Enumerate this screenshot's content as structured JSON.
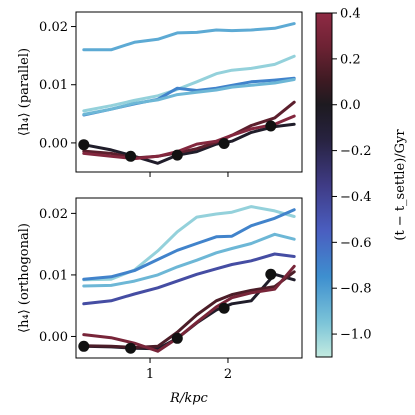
{
  "chart_data": [
    {
      "type": "line",
      "panel": "top",
      "ylabel": "⟨h₄⟩ (parallel)",
      "xlabel": "",
      "xlim": [
        0.05,
        2.95
      ],
      "ylim": [
        -0.005,
        0.0225
      ],
      "yticks": [
        0.0,
        0.01,
        0.02
      ],
      "ytick_labels": [
        "0.00",
        "0.01",
        "0.02"
      ],
      "xticks": [
        1,
        2
      ],
      "xtick_labels": [
        "",
        ""
      ],
      "series": [
        {
          "age": -0.85,
          "x": [
            0.15,
            0.5,
            0.8,
            1.1,
            1.35,
            1.6,
            1.85,
            2.05,
            2.3,
            2.6,
            2.85
          ],
          "y": [
            0.016,
            0.016,
            0.0173,
            0.0178,
            0.0189,
            0.019,
            0.0194,
            0.0193,
            0.0194,
            0.0197,
            0.0205
          ]
        },
        {
          "age": -1.0,
          "x": [
            0.15,
            0.5,
            0.8,
            1.1,
            1.35,
            1.6,
            1.85,
            2.05,
            2.3,
            2.6,
            2.85
          ],
          "y": [
            0.0055,
            0.0064,
            0.0073,
            0.0081,
            0.0092,
            0.0105,
            0.0119,
            0.0125,
            0.0128,
            0.0135,
            0.0149
          ]
        },
        {
          "age": -0.7,
          "x": [
            0.15,
            0.5,
            0.8,
            1.1,
            1.35,
            1.6,
            1.85,
            2.05,
            2.3,
            2.6,
            2.85
          ],
          "y": [
            0.0048,
            0.0058,
            0.0067,
            0.0075,
            0.0094,
            0.009,
            0.0094,
            0.0099,
            0.0105,
            0.0108,
            0.0111
          ]
        },
        {
          "age": -0.9,
          "x": [
            0.15,
            0.5,
            0.8,
            1.1,
            1.35,
            1.6,
            1.85,
            2.05,
            2.3,
            2.6,
            2.85
          ],
          "y": [
            0.0049,
            0.0058,
            0.0068,
            0.0074,
            0.0083,
            0.0087,
            0.0091,
            0.0096,
            0.0099,
            0.0103,
            0.0109
          ]
        },
        {
          "age": -0.05,
          "x": [
            0.15,
            0.5,
            0.8,
            1.1,
            1.35,
            1.6,
            1.85,
            2.05,
            2.3,
            2.6,
            2.85
          ],
          "y": [
            -0.0003,
            -0.0012,
            -0.0023,
            -0.0035,
            -0.0021,
            -0.0015,
            -0.0002,
            0.0003,
            0.0018,
            0.0028,
            0.0032
          ]
        },
        {
          "age": 0.2,
          "x": [
            0.15,
            0.5,
            0.8,
            1.1,
            1.35,
            1.6,
            1.85,
            2.05,
            2.3,
            2.6,
            2.85
          ],
          "y": [
            -0.0014,
            -0.0018,
            -0.0026,
            -0.0023,
            -0.0017,
            -0.001,
            0.0001,
            0.0013,
            0.003,
            0.0043,
            0.007
          ]
        },
        {
          "age": 0.35,
          "x": [
            0.15,
            0.5,
            0.8,
            1.1,
            1.35,
            1.6,
            1.85,
            2.05,
            2.3,
            2.6,
            2.85
          ],
          "y": [
            -0.0018,
            -0.0023,
            -0.0027,
            -0.0023,
            -0.0015,
            -0.0002,
            0.0003,
            0.0013,
            0.0024,
            0.0032,
            0.0046
          ]
        }
      ],
      "markers": {
        "x": [
          0.15,
          0.75,
          1.35,
          1.95,
          2.55
        ],
        "y": [
          -0.0003,
          -0.0023,
          -0.0021,
          -0.0001,
          0.0029
        ]
      }
    },
    {
      "type": "line",
      "panel": "bottom",
      "ylabel": "⟨h₄⟩ (orthogonal)",
      "xlabel": "R/kpc",
      "xlim": [
        0.05,
        2.95
      ],
      "ylim": [
        -0.0035,
        0.0225
      ],
      "yticks": [
        0.0,
        0.01,
        0.02
      ],
      "ytick_labels": [
        "0.00",
        "0.01",
        "0.02"
      ],
      "xticks": [
        1,
        2
      ],
      "xtick_labels": [
        "1",
        "2"
      ],
      "series": [
        {
          "age": -1.0,
          "x": [
            0.15,
            0.5,
            0.8,
            1.1,
            1.35,
            1.6,
            1.85,
            2.05,
            2.3,
            2.6,
            2.85
          ],
          "y": [
            0.0092,
            0.0093,
            0.0108,
            0.0139,
            0.017,
            0.0194,
            0.0199,
            0.0202,
            0.0211,
            0.0204,
            0.0195
          ]
        },
        {
          "age": -0.7,
          "x": [
            0.15,
            0.5,
            0.8,
            1.1,
            1.35,
            1.6,
            1.85,
            2.05,
            2.3,
            2.6,
            2.85
          ],
          "y": [
            0.0093,
            0.0097,
            0.0107,
            0.0125,
            0.014,
            0.0151,
            0.0162,
            0.0163,
            0.018,
            0.0192,
            0.0206
          ]
        },
        {
          "age": -0.9,
          "x": [
            0.15,
            0.5,
            0.8,
            1.1,
            1.35,
            1.6,
            1.85,
            2.05,
            2.3,
            2.6,
            2.85
          ],
          "y": [
            0.0082,
            0.0083,
            0.009,
            0.01,
            0.0113,
            0.0124,
            0.0136,
            0.0143,
            0.0151,
            0.0166,
            0.0158
          ]
        },
        {
          "age": -0.45,
          "x": [
            0.15,
            0.5,
            0.8,
            1.1,
            1.35,
            1.6,
            1.85,
            2.05,
            2.3,
            2.6,
            2.85
          ],
          "y": [
            0.0053,
            0.0058,
            0.0069,
            0.0079,
            0.009,
            0.0101,
            0.011,
            0.0117,
            0.0123,
            0.0134,
            0.013
          ]
        },
        {
          "age": -0.05,
          "x": [
            0.15,
            0.5,
            0.8,
            1.1,
            1.35,
            1.6,
            1.85,
            2.05,
            2.3,
            2.6,
            2.85
          ],
          "y": [
            -0.0016,
            -0.0017,
            -0.0019,
            -0.002,
            -0.0003,
            0.0022,
            0.0043,
            0.0053,
            0.0058,
            0.0101,
            0.0092
          ]
        },
        {
          "age": 0.15,
          "x": [
            0.15,
            0.5,
            0.8,
            1.1,
            1.35,
            1.6,
            1.85,
            2.05,
            2.3,
            2.6,
            2.85
          ],
          "y": [
            -0.0015,
            -0.0016,
            -0.0018,
            -0.0016,
            0.0007,
            0.0035,
            0.0058,
            0.0068,
            0.0075,
            0.0081,
            0.0105
          ]
        },
        {
          "age": 0.3,
          "x": [
            0.15,
            0.5,
            0.8,
            1.1,
            1.35,
            1.6,
            1.85,
            2.05,
            2.3,
            2.6,
            2.85
          ],
          "y": [
            0.0003,
            -0.0002,
            -0.0011,
            -0.0024,
            -0.0003,
            0.0023,
            0.0048,
            0.0063,
            0.0071,
            0.0077,
            0.0114
          ]
        }
      ],
      "markers": {
        "x": [
          0.15,
          0.75,
          1.35,
          1.95,
          2.55
        ],
        "y": [
          -0.0016,
          -0.0019,
          -0.0003,
          0.0046,
          0.0101
        ]
      }
    },
    {
      "type": "colorbar",
      "label": "(t − t_settle)/Gyr",
      "range": [
        -1.1,
        0.4
      ],
      "ticks": [
        0.4,
        0.2,
        0.0,
        -0.2,
        -0.4,
        -0.6,
        -0.8,
        -1.0
      ],
      "tick_labels": [
        "0.4",
        "0.2",
        "0.0",
        "−0.2",
        "−0.4",
        "−0.6",
        "−0.8",
        "−1.0"
      ],
      "colormap": "icefire",
      "color_stops": [
        {
          "v": -1.1,
          "color": "#c3ebe0"
        },
        {
          "v": -0.95,
          "color": "#7cc4d8"
        },
        {
          "v": -0.75,
          "color": "#3e8fcf"
        },
        {
          "v": -0.55,
          "color": "#4a5ec0"
        },
        {
          "v": -0.35,
          "color": "#3f3b85"
        },
        {
          "v": -0.15,
          "color": "#27223f"
        },
        {
          "v": 0.0,
          "color": "#1d1a20"
        },
        {
          "v": 0.1,
          "color": "#3c1a22"
        },
        {
          "v": 0.25,
          "color": "#6c2233"
        },
        {
          "v": 0.4,
          "color": "#8f2a44"
        }
      ]
    }
  ]
}
